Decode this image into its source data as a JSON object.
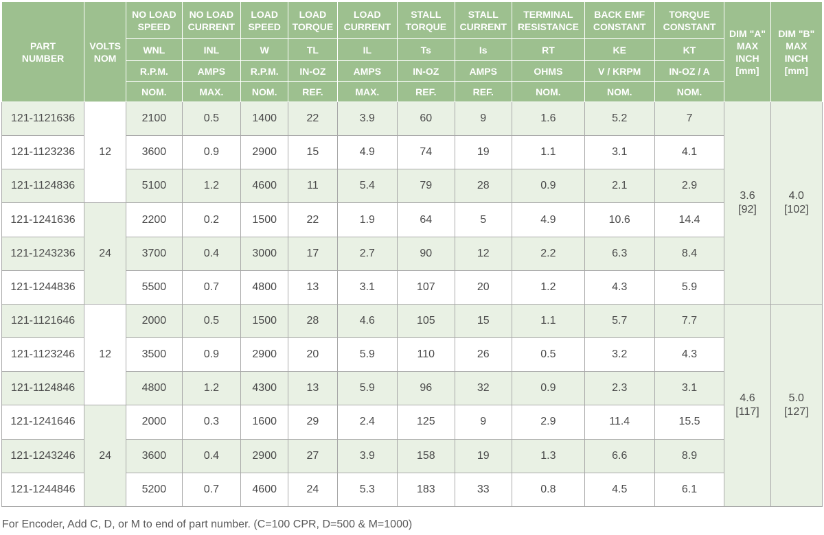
{
  "header": {
    "part_number": [
      "PART",
      "NUMBER"
    ],
    "volts_nom": [
      "VOLTS",
      "NOM"
    ],
    "columns": [
      {
        "title": [
          "NO LOAD",
          "SPEED"
        ],
        "symbol": "WNL",
        "unit": "R.P.M.",
        "qual": "NOM."
      },
      {
        "title": [
          "NO LOAD",
          "CURRENT"
        ],
        "symbol": "INL",
        "unit": "AMPS",
        "qual": "MAX."
      },
      {
        "title": [
          "LOAD",
          "SPEED"
        ],
        "symbol": "W",
        "unit": "R.P.M.",
        "qual": "NOM."
      },
      {
        "title": [
          "LOAD",
          "TORQUE"
        ],
        "symbol": "TL",
        "unit": "IN-OZ",
        "qual": "REF."
      },
      {
        "title": [
          "LOAD",
          "CURRENT"
        ],
        "symbol": "IL",
        "unit": "AMPS",
        "qual": "MAX."
      },
      {
        "title": [
          "STALL",
          "TORQUE"
        ],
        "symbol": "Ts",
        "unit": "IN-OZ",
        "qual": "REF."
      },
      {
        "title": [
          "STALL",
          "CURRENT"
        ],
        "symbol": "Is",
        "unit": "AMPS",
        "qual": "REF."
      },
      {
        "title": [
          "TERMINAL",
          "RESISTANCE"
        ],
        "symbol": "RT",
        "unit": "OHMS",
        "qual": "NOM."
      },
      {
        "title": [
          "BACK EMF",
          "CONSTANT"
        ],
        "symbol": "KE",
        "unit": "V / KRPM",
        "qual": "NOM."
      },
      {
        "title": [
          "TORQUE",
          "CONSTANT"
        ],
        "symbol": "KT",
        "unit": "IN-OZ / A",
        "qual": "NOM."
      }
    ],
    "dim_a": [
      "DIM \"A\"",
      "MAX",
      "INCH",
      "[mm]"
    ],
    "dim_b": [
      "DIM \"B\"",
      "MAX",
      "INCH",
      "[mm]"
    ]
  },
  "volt_groups": [
    "12",
    "24",
    "12",
    "24"
  ],
  "dim_groups": [
    {
      "a": [
        "3.6",
        "[92]"
      ],
      "b": [
        "4.0",
        "[102]"
      ]
    },
    {
      "a": [
        "4.6",
        "[117]"
      ],
      "b": [
        "5.0",
        "[127]"
      ]
    }
  ],
  "rows": [
    {
      "part": "121-1121636",
      "values": [
        "2100",
        "0.5",
        "1400",
        "22",
        "3.9",
        "60",
        "9",
        "1.6",
        "5.2",
        "7"
      ]
    },
    {
      "part": "121-1123236",
      "values": [
        "3600",
        "0.9",
        "2900",
        "15",
        "4.9",
        "74",
        "19",
        "1.1",
        "3.1",
        "4.1"
      ]
    },
    {
      "part": "121-1124836",
      "values": [
        "5100",
        "1.2",
        "4600",
        "11",
        "5.4",
        "79",
        "28",
        "0.9",
        "2.1",
        "2.9"
      ]
    },
    {
      "part": "121-1241636",
      "values": [
        "2200",
        "0.2",
        "1500",
        "22",
        "1.9",
        "64",
        "5",
        "4.9",
        "10.6",
        "14.4"
      ]
    },
    {
      "part": "121-1243236",
      "values": [
        "3700",
        "0.4",
        "3000",
        "17",
        "2.7",
        "90",
        "12",
        "2.2",
        "6.3",
        "8.4"
      ]
    },
    {
      "part": "121-1244836",
      "values": [
        "5500",
        "0.7",
        "4800",
        "13",
        "3.1",
        "107",
        "20",
        "1.2",
        "4.3",
        "5.9"
      ]
    },
    {
      "part": "121-1121646",
      "values": [
        "2000",
        "0.5",
        "1500",
        "28",
        "4.6",
        "105",
        "15",
        "1.1",
        "5.7",
        "7.7"
      ]
    },
    {
      "part": "121-1123246",
      "values": [
        "3500",
        "0.9",
        "2900",
        "20",
        "5.9",
        "110",
        "26",
        "0.5",
        "3.2",
        "4.3"
      ]
    },
    {
      "part": "121-1124846",
      "values": [
        "4800",
        "1.2",
        "4300",
        "13",
        "5.9",
        "96",
        "32",
        "0.9",
        "2.3",
        "3.1"
      ]
    },
    {
      "part": "121-1241646",
      "values": [
        "2000",
        "0.3",
        "1600",
        "29",
        "2.4",
        "125",
        "9",
        "2.9",
        "11.4",
        "15.5"
      ]
    },
    {
      "part": "121-1243246",
      "values": [
        "3600",
        "0.4",
        "2900",
        "27",
        "3.9",
        "158",
        "19",
        "1.3",
        "6.6",
        "8.9"
      ]
    },
    {
      "part": "121-1244846",
      "values": [
        "5200",
        "0.7",
        "4600",
        "24",
        "5.3",
        "183",
        "33",
        "0.8",
        "4.5",
        "6.1"
      ]
    }
  ],
  "footnote": "For Encoder, Add C, D, or M to end of part number. (C=100 CPR, D=500 & M=1000)",
  "colors": {
    "header_bg": "#9dc08f",
    "row_light": "#e9f1e4",
    "row_white": "#ffffff"
  }
}
